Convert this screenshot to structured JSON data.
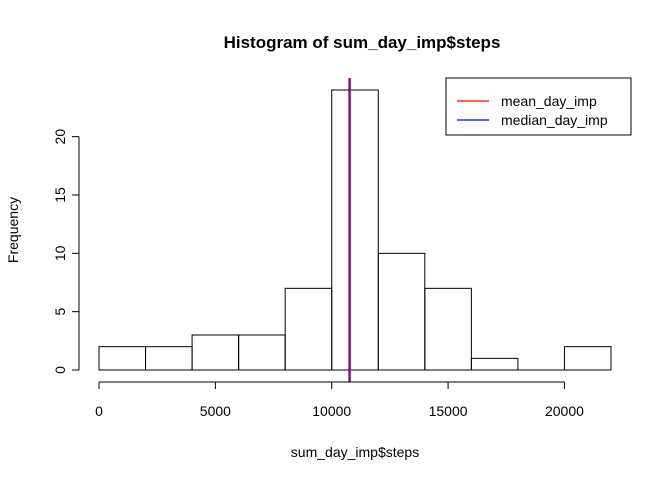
{
  "chart_data": {
    "type": "bar",
    "title": "Histogram of sum_day_imp$steps",
    "xlabel": "sum_day_imp$steps",
    "ylabel": "Frequency",
    "bins": [
      {
        "start": 0,
        "end": 2000,
        "count": 2
      },
      {
        "start": 2000,
        "end": 4000,
        "count": 2
      },
      {
        "start": 4000,
        "end": 6000,
        "count": 3
      },
      {
        "start": 6000,
        "end": 8000,
        "count": 3
      },
      {
        "start": 8000,
        "end": 10000,
        "count": 7
      },
      {
        "start": 10000,
        "end": 12000,
        "count": 24
      },
      {
        "start": 12000,
        "end": 14000,
        "count": 10
      },
      {
        "start": 14000,
        "end": 16000,
        "count": 7
      },
      {
        "start": 16000,
        "end": 18000,
        "count": 1
      },
      {
        "start": 18000,
        "end": 20000,
        "count": 0
      },
      {
        "start": 20000,
        "end": 22000,
        "count": 2
      }
    ],
    "x_ticks": [
      0,
      5000,
      10000,
      15000,
      20000
    ],
    "x_tick_labels": [
      "0",
      "5000",
      "10000",
      "15000",
      "20000"
    ],
    "y_ticks": [
      0,
      5,
      10,
      15,
      20
    ],
    "y_tick_labels": [
      "0",
      "5",
      "10",
      "15",
      "20"
    ],
    "xlim": [
      0,
      22000
    ],
    "ylim": [
      0,
      24
    ],
    "reference_lines": [
      {
        "name": "mean_day_imp",
        "value": 10766.19,
        "color": "#ff0000"
      },
      {
        "name": "median_day_imp",
        "value": 10766.19,
        "color": "#0000ff"
      }
    ],
    "overlap_line_color": "#800080",
    "legend": {
      "position": "top-right",
      "entries": [
        {
          "label": "mean_day_imp",
          "color": "#ff0000"
        },
        {
          "label": "median_day_imp",
          "color": "#0000ff"
        }
      ]
    },
    "grid": false
  }
}
